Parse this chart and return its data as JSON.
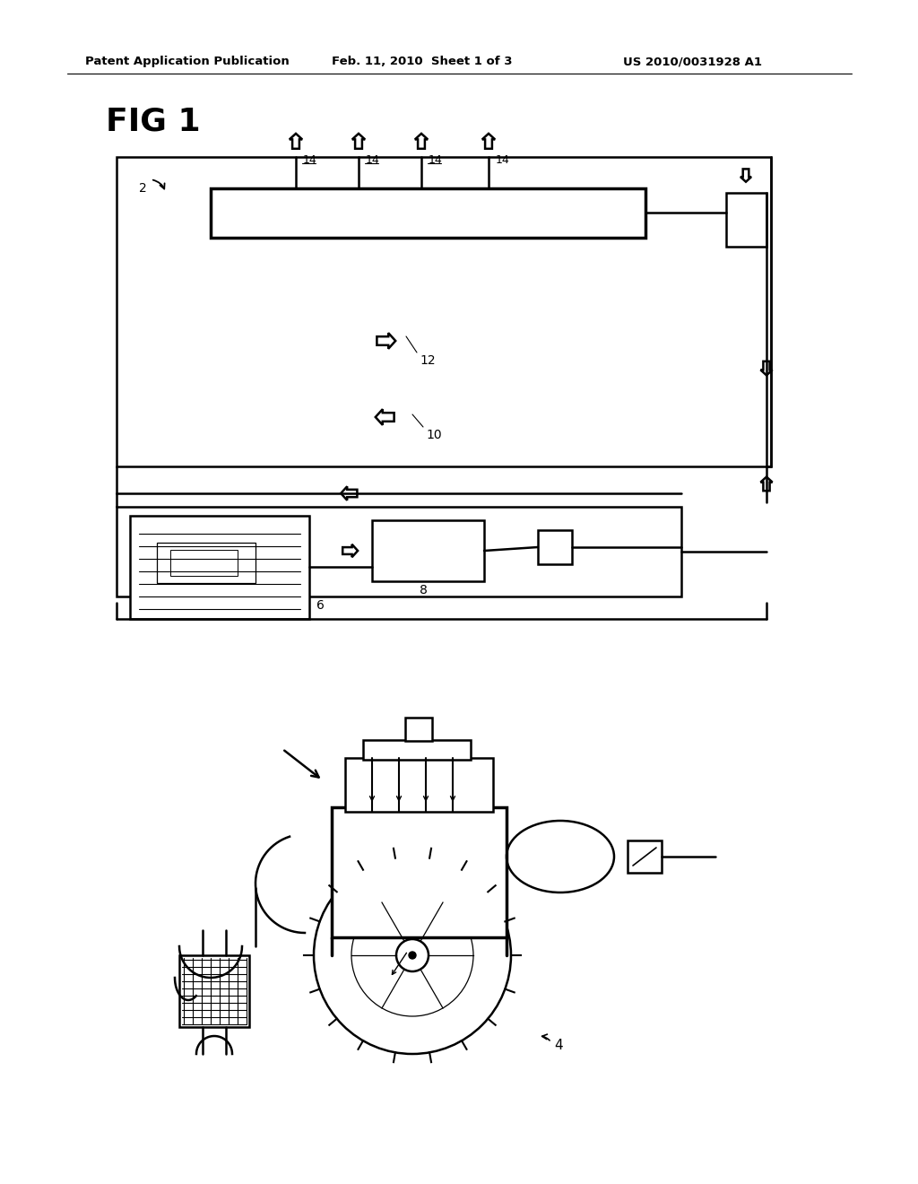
{
  "bg_color": "#ffffff",
  "line_color": "#000000",
  "header_text": "Patent Application Publication",
  "header_date": "Feb. 11, 2010  Sheet 1 of 3",
  "header_patent": "US 2010/0031928 A1",
  "fig_label": "FIG 1"
}
